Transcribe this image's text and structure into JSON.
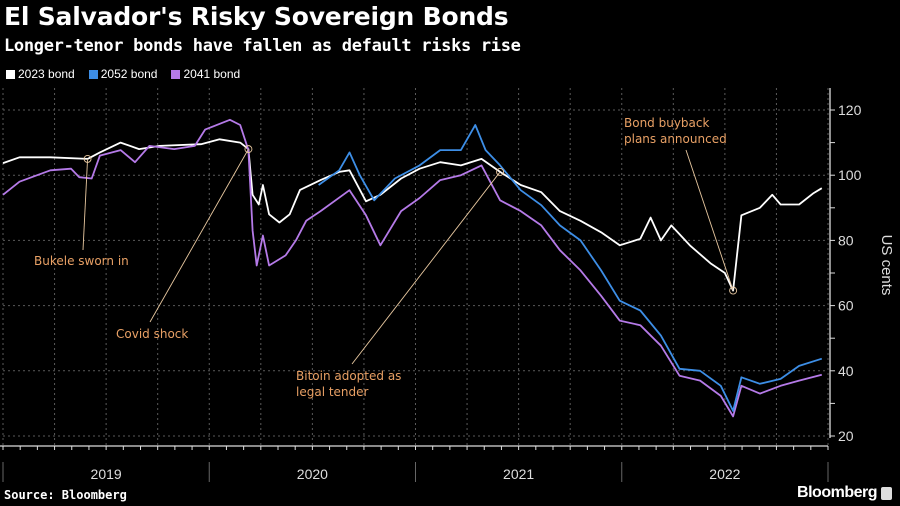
{
  "header": {
    "title": "El Salvador's Risky Sovereign Bonds",
    "subtitle": "Longer-tenor bonds have fallen as default risks rise"
  },
  "footer": {
    "source": "Source: Bloomberg",
    "brand": "Bloomberg"
  },
  "colors": {
    "background": "#000000",
    "series_2023": "#ffffff",
    "series_2052": "#3d8ee6",
    "series_2041": "#b57ae8",
    "annotation": "#e8a065",
    "grid": "#555555"
  },
  "chart_data": {
    "type": "line",
    "title": "El Salvador's Risky Sovereign Bonds",
    "subtitle": "Longer-tenor bonds have fallen as default risks rise",
    "xlabel": "",
    "ylabel": "US cents",
    "ylim": [
      20,
      125
    ],
    "xlim": [
      2019.0,
      2023.0
    ],
    "yticks": [
      20,
      40,
      60,
      80,
      100,
      120
    ],
    "xtick_labels": [
      "2019",
      "2020",
      "2021",
      "2022"
    ],
    "grid": true,
    "legend_position": "top-left",
    "legend": [
      "2023 bond",
      "2052 bond",
      "2041 bond"
    ],
    "series": [
      {
        "name": "2023 bond",
        "color": "#ffffff",
        "x": [
          2019.0,
          2019.08,
          2019.23,
          2019.41,
          2019.47,
          2019.57,
          2019.66,
          2019.76,
          2019.96,
          2020.05,
          2020.15,
          2020.19,
          2020.21,
          2020.24,
          2020.26,
          2020.29,
          2020.34,
          2020.39,
          2020.44,
          2020.54,
          2020.63,
          2020.68,
          2020.76,
          2020.83,
          2020.93,
          2021.02,
          2021.12,
          2021.22,
          2021.32,
          2021.41,
          2021.51,
          2021.61,
          2021.7,
          2021.8,
          2021.9,
          2021.99,
          2022.09,
          2022.14,
          2022.19,
          2022.24,
          2022.33,
          2022.43,
          2022.5,
          2022.54,
          2022.58,
          2022.67,
          2022.73,
          2022.77,
          2022.86,
          2022.93,
          2022.97
        ],
        "values": [
          103.7,
          105.5,
          105.5,
          105,
          107,
          110,
          108,
          109,
          109.5,
          111,
          110,
          108,
          94,
          91,
          97,
          88,
          85.5,
          88,
          95.5,
          98.5,
          101,
          101.5,
          92,
          94,
          99,
          102,
          104,
          103,
          105,
          101,
          97,
          94.8,
          89,
          86,
          82.5,
          78.5,
          80.5,
          87,
          80,
          84.6,
          78.5,
          73,
          70,
          64.6,
          87.7,
          90,
          94,
          91,
          91,
          94.5,
          96
        ]
      },
      {
        "name": "2052 bond",
        "color": "#3d8ee6",
        "x": [
          2020.53,
          2020.63,
          2020.68,
          2020.73,
          2020.8,
          2020.9,
          2021.02,
          2021.12,
          2021.22,
          2021.29,
          2021.34,
          2021.41,
          2021.51,
          2021.61,
          2021.7,
          2021.8,
          2021.9,
          2021.99,
          2022.09,
          2022.19,
          2022.28,
          2022.38,
          2022.48,
          2022.54,
          2022.58,
          2022.67,
          2022.77,
          2022.86,
          2022.97
        ],
        "values": [
          97,
          101.5,
          107,
          100,
          92.3,
          99,
          103,
          107.7,
          107.7,
          115.4,
          107.7,
          103,
          95.4,
          90.8,
          84.6,
          80,
          70.8,
          61.5,
          58.5,
          50.8,
          40.6,
          40,
          35.4,
          27.7,
          38,
          36,
          37.5,
          41.5,
          43.7
        ]
      },
      {
        "name": "2041 bond",
        "color": "#b57ae8",
        "x": [
          2019.0,
          2019.08,
          2019.23,
          2019.33,
          2019.37,
          2019.43,
          2019.47,
          2019.57,
          2019.64,
          2019.71,
          2019.83,
          2019.93,
          2019.98,
          2020.1,
          2020.15,
          2020.19,
          2020.21,
          2020.23,
          2020.26,
          2020.29,
          2020.37,
          2020.42,
          2020.47,
          2020.54,
          2020.68,
          2020.76,
          2020.83,
          2020.93,
          2021.02,
          2021.12,
          2021.22,
          2021.32,
          2021.41,
          2021.51,
          2021.61,
          2021.7,
          2021.8,
          2021.9,
          2021.99,
          2022.09,
          2022.19,
          2022.28,
          2022.38,
          2022.48,
          2022.54,
          2022.58,
          2022.67,
          2022.77,
          2022.86,
          2022.97
        ],
        "values": [
          94,
          98,
          101.5,
          102,
          99.4,
          99,
          106,
          107.7,
          104,
          109,
          108,
          109,
          114,
          117,
          115.4,
          107.7,
          83,
          72.3,
          81.5,
          72.3,
          75.4,
          80,
          86,
          89,
          95.4,
          87.7,
          78.5,
          89,
          93,
          98.5,
          100,
          103,
          92.3,
          89,
          84.6,
          77,
          70.8,
          63,
          55.4,
          54,
          47.7,
          38.5,
          37,
          32.3,
          26,
          35.4,
          33,
          35.4,
          37,
          38.8
        ]
      }
    ],
    "annotations": [
      {
        "label": "Bukele sworn in",
        "x": 2019.41,
        "y": 105,
        "lines": [
          "Bukele sworn in"
        ]
      },
      {
        "label": "Covid shock",
        "x": 2020.19,
        "y": 108,
        "lines": [
          "Covid shock"
        ]
      },
      {
        "label": "Bitoin adopted as legal tender",
        "x": 2021.41,
        "y": 101,
        "lines": [
          "Bitoin adopted as",
          "legal tender"
        ]
      },
      {
        "label": "Bond buyback plans announced",
        "x": 2022.54,
        "y": 64.6,
        "lines": [
          "Bond buyback",
          "plans announced"
        ]
      }
    ]
  }
}
